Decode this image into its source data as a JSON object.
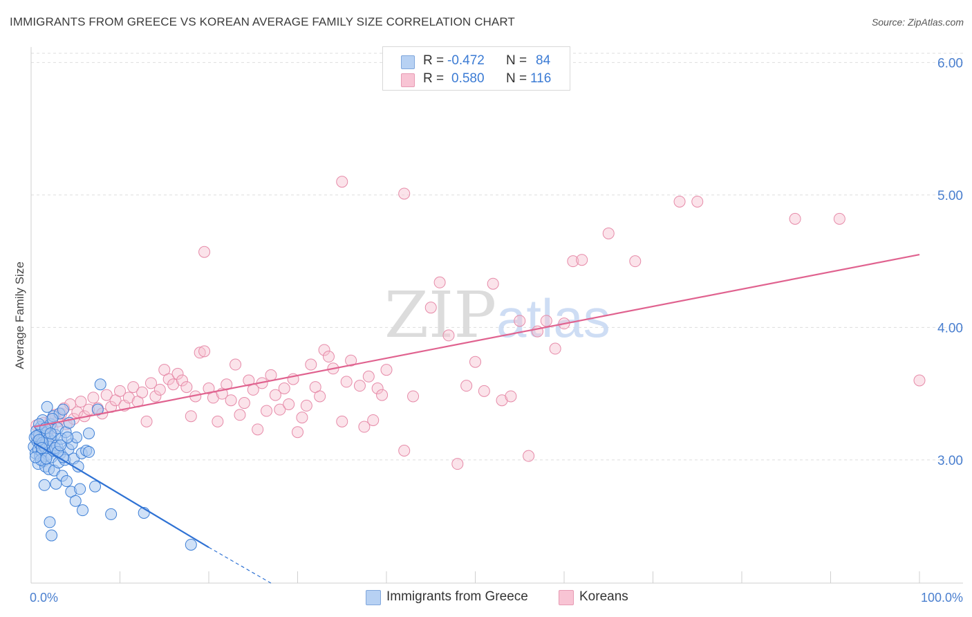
{
  "header": {
    "title": "IMMIGRANTS FROM GREECE VS KOREAN AVERAGE FAMILY SIZE CORRELATION CHART",
    "source": "Source: ZipAtlas.com"
  },
  "legend_top": {
    "rows": [
      {
        "r_label": "R = ",
        "r_value": "-0.472",
        "n_label": "N = ",
        "n_value": "84",
        "color": "#b7d1f3"
      },
      {
        "r_label": "R = ",
        "r_value": "0.580",
        "n_label": "N = ",
        "n_value": "116",
        "color": "#f8c4d4"
      }
    ]
  },
  "legend_bottom": [
    {
      "label": "Immigrants from Greece",
      "color": "#b7d1f3"
    },
    {
      "label": "Koreans",
      "color": "#f8c4d4"
    }
  ],
  "watermark": {
    "zip": "ZIP",
    "atlas": "atlas"
  },
  "colors": {
    "blue_fill": "#a9c8f0",
    "blue_stroke": "#3d7fd6",
    "blue_line": "#2f72d4",
    "pink_fill": "#f7c0d1",
    "pink_stroke": "#e68aa8",
    "pink_line": "#e0628f",
    "tick": "#4a7fcf",
    "grid": "#dddddd"
  },
  "chart_data": {
    "type": "scatter",
    "title": "IMMIGRANTS FROM GREECE VS KOREAN AVERAGE FAMILY SIZE CORRELATION CHART",
    "xlabel": "",
    "ylabel": "Average Family Size",
    "xlim": [
      0,
      100
    ],
    "ylim": [
      2.07,
      6.07
    ],
    "x_tick_labels": [
      {
        "value": 0,
        "label": "0.0%"
      },
      {
        "value": 100,
        "label": "100.0%"
      }
    ],
    "y_ticks": [
      {
        "value": 3.0,
        "label": "3.00"
      },
      {
        "value": 4.0,
        "label": "4.00"
      },
      {
        "value": 5.0,
        "label": "5.00"
      },
      {
        "value": 6.0,
        "label": "6.00"
      }
    ],
    "series": [
      {
        "name": "Immigrants from Greece",
        "R": -0.472,
        "N": 84,
        "trend": {
          "x0": 0.3,
          "y0": 3.13,
          "x1": 20,
          "y1": 2.34,
          "dash_to_x": 27,
          "dash_to_y": 2.07
        },
        "points": [
          [
            0.3,
            3.1
          ],
          [
            0.4,
            3.17
          ],
          [
            0.5,
            3.05
          ],
          [
            0.6,
            3.22
          ],
          [
            0.7,
            3.14
          ],
          [
            0.8,
            2.97
          ],
          [
            0.8,
            3.08
          ],
          [
            0.9,
            3.19
          ],
          [
            1.0,
            3.12
          ],
          [
            1.0,
            3.03
          ],
          [
            1.1,
            3.25
          ],
          [
            1.2,
            3.15
          ],
          [
            1.2,
            3.06
          ],
          [
            1.3,
            3.3
          ],
          [
            1.4,
            3.11
          ],
          [
            1.4,
            2.99
          ],
          [
            1.5,
            3.18
          ],
          [
            1.6,
            3.09
          ],
          [
            1.6,
            2.95
          ],
          [
            1.7,
            3.13
          ],
          [
            1.8,
            3.21
          ],
          [
            1.9,
            3.04
          ],
          [
            2.0,
            3.16
          ],
          [
            2.0,
            2.93
          ],
          [
            2.1,
            3.1
          ],
          [
            2.2,
            3.27
          ],
          [
            2.3,
            3.02
          ],
          [
            2.4,
            3.14
          ],
          [
            2.5,
            3.33
          ],
          [
            2.5,
            3.07
          ],
          [
            2.6,
            2.92
          ],
          [
            2.7,
            3.19
          ],
          [
            2.8,
            2.82
          ],
          [
            2.9,
            3.11
          ],
          [
            3.0,
            3.24
          ],
          [
            3.1,
            2.98
          ],
          [
            3.2,
            3.35
          ],
          [
            3.3,
            3.05
          ],
          [
            3.4,
            3.16
          ],
          [
            3.5,
            2.88
          ],
          [
            3.6,
            3.38
          ],
          [
            3.8,
            3.0
          ],
          [
            3.9,
            3.21
          ],
          [
            4.0,
            2.84
          ],
          [
            4.2,
            3.08
          ],
          [
            4.3,
            3.28
          ],
          [
            4.5,
            2.76
          ],
          [
            4.6,
            3.12
          ],
          [
            4.8,
            3.01
          ],
          [
            5.0,
            2.69
          ],
          [
            5.1,
            3.17
          ],
          [
            5.3,
            2.95
          ],
          [
            5.5,
            2.78
          ],
          [
            5.7,
            3.05
          ],
          [
            5.8,
            2.62
          ],
          [
            6.2,
            3.07
          ],
          [
            6.5,
            3.2
          ],
          [
            7.2,
            2.8
          ],
          [
            7.5,
            3.38
          ],
          [
            7.8,
            3.57
          ],
          [
            2.1,
            2.53
          ],
          [
            2.3,
            2.43
          ],
          [
            1.5,
            2.81
          ],
          [
            0.9,
            3.27
          ],
          [
            1.1,
            3.0
          ],
          [
            3.6,
            3.02
          ],
          [
            2.7,
            3.09
          ],
          [
            1.8,
            3.4
          ],
          [
            0.6,
            3.18
          ],
          [
            1.3,
            3.13
          ],
          [
            2.4,
            3.31
          ],
          [
            3.0,
            3.06
          ],
          [
            0.9,
            3.15
          ],
          [
            1.6,
            3.24
          ],
          [
            4.1,
            3.17
          ],
          [
            2.2,
            3.2
          ],
          [
            3.3,
            3.11
          ],
          [
            1.2,
            3.09
          ],
          [
            0.5,
            3.02
          ],
          [
            6.5,
            3.06
          ],
          [
            9.0,
            2.59
          ],
          [
            12.7,
            2.6
          ],
          [
            18.0,
            2.36
          ],
          [
            1.7,
            3.01
          ]
        ]
      },
      {
        "name": "Koreans",
        "R": 0.58,
        "N": 116,
        "trend": {
          "x0": 0.3,
          "y0": 3.25,
          "x1": 100,
          "y1": 4.55
        },
        "points": [
          [
            0.6,
            3.26
          ],
          [
            0.8,
            3.16
          ],
          [
            1.0,
            3.21
          ],
          [
            1.2,
            3.13
          ],
          [
            1.4,
            3.28
          ],
          [
            1.6,
            3.19
          ],
          [
            1.8,
            3.23
          ],
          [
            2.0,
            3.15
          ],
          [
            2.2,
            3.3
          ],
          [
            2.4,
            3.24
          ],
          [
            2.7,
            3.34
          ],
          [
            3.0,
            3.29
          ],
          [
            3.4,
            3.35
          ],
          [
            3.7,
            3.39
          ],
          [
            4.0,
            3.27
          ],
          [
            4.4,
            3.42
          ],
          [
            4.8,
            3.31
          ],
          [
            5.2,
            3.36
          ],
          [
            5.6,
            3.44
          ],
          [
            6.0,
            3.33
          ],
          [
            6.5,
            3.38
          ],
          [
            7.0,
            3.47
          ],
          [
            7.5,
            3.39
          ],
          [
            8.0,
            3.35
          ],
          [
            8.5,
            3.49
          ],
          [
            9.0,
            3.4
          ],
          [
            9.5,
            3.45
          ],
          [
            10.0,
            3.52
          ],
          [
            10.5,
            3.41
          ],
          [
            11.0,
            3.47
          ],
          [
            11.5,
            3.55
          ],
          [
            12.0,
            3.44
          ],
          [
            12.5,
            3.51
          ],
          [
            13.0,
            3.29
          ],
          [
            13.5,
            3.58
          ],
          [
            14.0,
            3.48
          ],
          [
            14.5,
            3.53
          ],
          [
            15.0,
            3.68
          ],
          [
            15.5,
            3.61
          ],
          [
            16.0,
            3.57
          ],
          [
            16.5,
            3.65
          ],
          [
            17.0,
            3.6
          ],
          [
            17.5,
            3.55
          ],
          [
            18.0,
            3.33
          ],
          [
            18.5,
            3.48
          ],
          [
            19.0,
            3.81
          ],
          [
            19.5,
            3.82
          ],
          [
            20.0,
            3.54
          ],
          [
            20.5,
            3.47
          ],
          [
            21.0,
            3.29
          ],
          [
            21.5,
            3.5
          ],
          [
            22.0,
            3.57
          ],
          [
            22.5,
            3.45
          ],
          [
            23.0,
            3.72
          ],
          [
            23.5,
            3.34
          ],
          [
            24.0,
            3.43
          ],
          [
            24.5,
            3.6
          ],
          [
            25.0,
            3.53
          ],
          [
            25.5,
            3.23
          ],
          [
            26.0,
            3.58
          ],
          [
            26.5,
            3.37
          ],
          [
            27.0,
            3.64
          ],
          [
            27.5,
            3.49
          ],
          [
            28.0,
            3.38
          ],
          [
            28.5,
            3.54
          ],
          [
            29.0,
            3.42
          ],
          [
            29.5,
            3.61
          ],
          [
            30.0,
            3.21
          ],
          [
            30.5,
            3.32
          ],
          [
            31.0,
            3.41
          ],
          [
            31.5,
            3.72
          ],
          [
            32.0,
            3.55
          ],
          [
            32.5,
            3.48
          ],
          [
            33.0,
            3.83
          ],
          [
            33.5,
            3.78
          ],
          [
            34.0,
            3.69
          ],
          [
            35.0,
            3.29
          ],
          [
            35.5,
            3.59
          ],
          [
            36.0,
            3.75
          ],
          [
            37.0,
            3.56
          ],
          [
            37.5,
            3.25
          ],
          [
            38.0,
            3.63
          ],
          [
            38.5,
            3.3
          ],
          [
            39.0,
            3.54
          ],
          [
            39.5,
            3.49
          ],
          [
            40.0,
            3.68
          ],
          [
            42.0,
            3.07
          ],
          [
            43.0,
            3.48
          ],
          [
            45.0,
            4.15
          ],
          [
            46.0,
            4.34
          ],
          [
            47.0,
            3.94
          ],
          [
            48.0,
            2.97
          ],
          [
            49.0,
            3.56
          ],
          [
            50.0,
            3.74
          ],
          [
            51.0,
            3.52
          ],
          [
            52.0,
            4.33
          ],
          [
            53.0,
            3.45
          ],
          [
            54.0,
            3.48
          ],
          [
            55.0,
            4.05
          ],
          [
            56.0,
            3.03
          ],
          [
            57.0,
            3.97
          ],
          [
            58.0,
            4.05
          ],
          [
            59.0,
            3.84
          ],
          [
            60.0,
            4.03
          ],
          [
            61.0,
            4.5
          ],
          [
            62.0,
            4.51
          ],
          [
            65.0,
            4.71
          ],
          [
            68.0,
            4.5
          ],
          [
            73.0,
            4.95
          ],
          [
            75.0,
            4.95
          ],
          [
            86.0,
            4.82
          ],
          [
            91.0,
            4.82
          ],
          [
            100.0,
            3.6
          ],
          [
            19.5,
            4.57
          ],
          [
            35.0,
            5.1
          ],
          [
            42.0,
            5.01
          ]
        ]
      }
    ]
  }
}
